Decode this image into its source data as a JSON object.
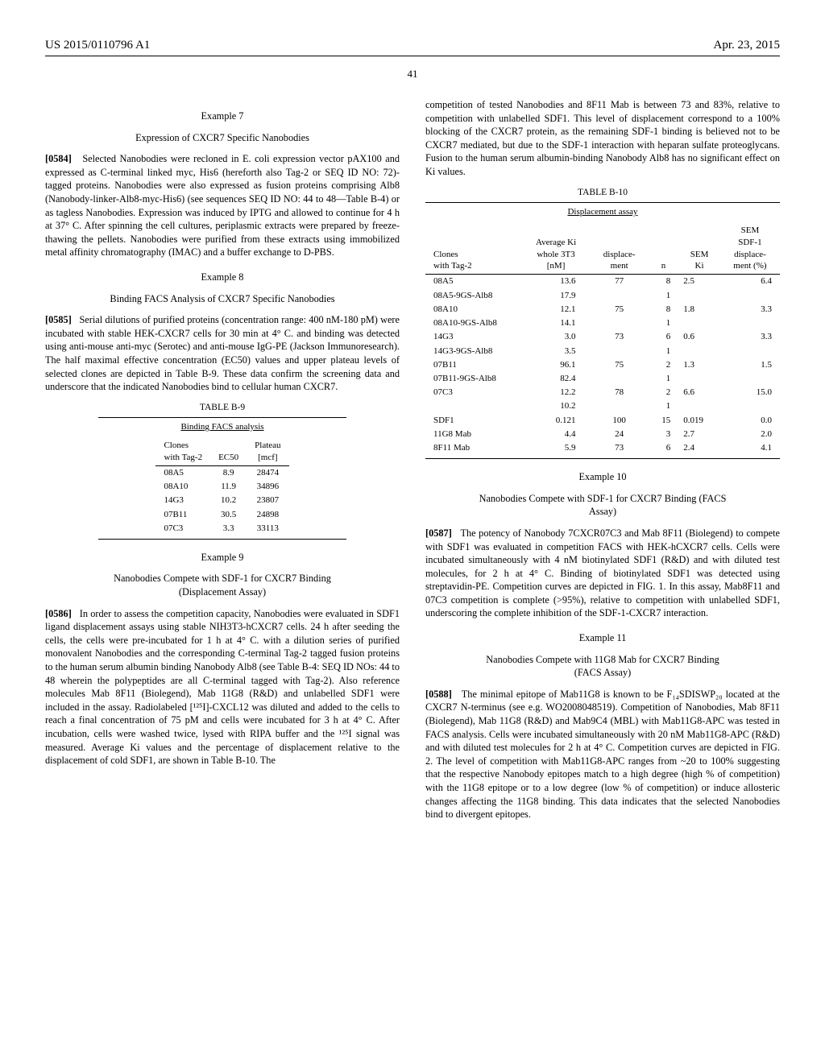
{
  "header": {
    "pub_no": "US 2015/0110796 A1",
    "date": "Apr. 23, 2015",
    "page": "41"
  },
  "left": {
    "ex7": {
      "title": "Example 7",
      "sub": "Expression of CXCR7 Specific Nanobodies",
      "paraNum": "[0584]",
      "paraText": "Selected Nanobodies were recloned in E. coli expression vector pAX100 and expressed as C-terminal linked myc, His6 (hereforth also Tag-2 or SEQ ID NO: 72)-tagged proteins. Nanobodies were also expressed as fusion proteins comprising Alb8 (Nanobody-linker-Alb8-myc-His6) (see sequences SEQ ID NO: 44 to 48—Table B-4) or as tagless Nanobodies. Expression was induced by IPTG and allowed to continue for 4 h at 37° C. After spinning the cell cultures, periplasmic extracts were prepared by freeze-thawing the pellets. Nanobodies were purified from these extracts using immobilized metal affinity chromatography (IMAC) and a buffer exchange to D-PBS."
    },
    "ex8": {
      "title": "Example 8",
      "sub": "Binding FACS Analysis of CXCR7 Specific Nanobodies",
      "paraNum": "[0585]",
      "paraText": "Serial dilutions of purified proteins (concentration range: 400 nM-180 pM) were incubated with stable HEK-CXCR7 cells for 30 min at 4° C. and binding was detected using anti-mouse anti-myc (Serotec) and anti-mouse IgG-PE (Jackson Immunoresearch). The half maximal effective concentration (EC50) values and upper plateau levels of selected clones are depicted in Table B-9. These data confirm the screening data and underscore that the indicated Nanobodies bind to cellular human CXCR7."
    },
    "tableB9": {
      "label": "TABLE B-9",
      "caption": "Binding FACS analysis",
      "headers": {
        "c1a": "Clones",
        "c1b": "with Tag-2",
        "c2": "EC50",
        "c3a": "Plateau",
        "c3b": "[mcf]"
      },
      "rows": [
        {
          "clone": "08A5",
          "ec50": "8.9",
          "plateau": "28474"
        },
        {
          "clone": "08A10",
          "ec50": "11.9",
          "plateau": "34896"
        },
        {
          "clone": "14G3",
          "ec50": "10.2",
          "plateau": "23807"
        },
        {
          "clone": "07B11",
          "ec50": "30.5",
          "plateau": "24898"
        },
        {
          "clone": "07C3",
          "ec50": "3.3",
          "plateau": "33113"
        }
      ]
    },
    "ex9": {
      "title": "Example 9",
      "sub": "Nanobodies Compete with SDF-1 for CXCR7 Binding (Displacement Assay)",
      "paraNum": "[0586]",
      "paraText": "In order to assess the competition capacity, Nanobodies were evaluated in SDF1 ligand displacement assays using stable NIH3T3-hCXCR7 cells. 24 h after seeding the cells, the cells were pre-incubated for 1 h at 4° C. with a dilution series of purified monovalent Nanobodies and the corresponding C-terminal Tag-2 tagged fusion proteins to the human serum albumin binding Nanobody Alb8 (see Table B-4: SEQ ID NOs: 44 to 48 wherein the polypeptides are all C-terminal tagged with Tag-2). Also reference molecules Mab 8F11 (Biolegend), Mab 11G8 (R&D) and unlabelled SDF1 were included in the assay. Radiolabeled [¹²⁵I]-CXCL12 was diluted and added to the cells to reach a final concentration of 75 pM and cells were incubated for 3 h at 4° C. After incubation, cells were washed twice, lysed with RIPA buffer and the ¹²⁵I signal was measured. Average Ki values and the percentage of displacement relative to the displacement of cold SDF1, are shown in Table B-10. The"
    }
  },
  "right": {
    "cont": "competition of tested Nanobodies and 8F11 Mab is between 73 and 83%, relative to competition with unlabelled SDF1. This level of displacement correspond to a 100% blocking of the CXCR7 protein, as the remaining SDF-1 binding is believed not to be CXCR7 mediated, but due to the SDF-1 interaction with heparan sulfate proteoglycans. Fusion to the human serum albumin-binding Nanobody Alb8 has no significant effect on Ki values.",
    "tableB10": {
      "label": "TABLE B-10",
      "caption": "Displacement assay",
      "headers": {
        "c1a": "Clones",
        "c1b": "with Tag-2",
        "c2a": "Average Ki",
        "c2b": "whole 3T3",
        "c2c": "[nM]",
        "c3a": "displace-",
        "c3b": "ment",
        "c4": "n",
        "c5a": "SEM",
        "c5b": "Ki",
        "c6a": "SEM",
        "c6b": "SDF-1",
        "c6c": "displace-",
        "c6d": "ment (%)"
      },
      "rows": [
        {
          "clone": "08A5",
          "ki": "13.6",
          "disp": "77",
          "n": "8",
          "semki": "2.5",
          "semd": "6.4"
        },
        {
          "clone": "08A5-9GS-Alb8",
          "ki": "17.9",
          "disp": "",
          "n": "1",
          "semki": "",
          "semd": ""
        },
        {
          "clone": "08A10",
          "ki": "12.1",
          "disp": "75",
          "n": "8",
          "semki": "1.8",
          "semd": "3.3"
        },
        {
          "clone": "08A10-9GS-Alb8",
          "ki": "14.1",
          "disp": "",
          "n": "1",
          "semki": "",
          "semd": ""
        },
        {
          "clone": "14G3",
          "ki": "3.0",
          "disp": "73",
          "n": "6",
          "semki": "0.6",
          "semd": "3.3"
        },
        {
          "clone": "14G3-9GS-Alb8",
          "ki": "3.5",
          "disp": "",
          "n": "1",
          "semki": "",
          "semd": ""
        },
        {
          "clone": "07B11",
          "ki": "96.1",
          "disp": "75",
          "n": "2",
          "semki": "1.3",
          "semd": "1.5"
        },
        {
          "clone": "07B11-9GS-Alb8",
          "ki": "82.4",
          "disp": "",
          "n": "1",
          "semki": "",
          "semd": ""
        },
        {
          "clone": "07C3",
          "ki": "12.2",
          "disp": "78",
          "n": "2",
          "semki": "6.6",
          "semd": "15.0"
        },
        {
          "clone": "",
          "ki": "10.2",
          "disp": "",
          "n": "1",
          "semki": "",
          "semd": ""
        },
        {
          "clone": "SDF1",
          "ki": "0.121",
          "disp": "100",
          "n": "15",
          "semki": "0.019",
          "semd": "0.0"
        },
        {
          "clone": "11G8 Mab",
          "ki": "4.4",
          "disp": "24",
          "n": "3",
          "semki": "2.7",
          "semd": "2.0"
        },
        {
          "clone": "8F11 Mab",
          "ki": "5.9",
          "disp": "73",
          "n": "6",
          "semki": "2.4",
          "semd": "4.1"
        }
      ]
    },
    "ex10": {
      "title": "Example 10",
      "sub": "Nanobodies Compete with SDF-1 for CXCR7 Binding (FACS Assay)",
      "paraNum": "[0587]",
      "paraText": "The potency of Nanobody 7CXCR07C3 and Mab 8F11 (Biolegend) to compete with SDF1 was evaluated in competition FACS with HEK-hCXCR7 cells. Cells were incubated simultaneously with 4 nM biotinylated SDF1 (R&D) and with diluted test molecules, for 2 h at 4° C. Binding of biotinylated SDF1 was detected using streptavidin-PE. Competition curves are depicted in FIG. 1. In this assay, Mab8F11 and 07C3 competition is complete (>95%), relative to competition with unlabelled SDF1, underscoring the complete inhibition of the SDF-1-CXCR7 interaction."
    },
    "ex11": {
      "title": "Example 11",
      "sub": "Nanobodies Compete with 11G8 Mab for CXCR7 Binding (FACS Assay)",
      "paraNum": "[0588]",
      "paraText": "The minimal epitope of Mab11G8 is known to be F₁₄SDISWP₂₀ located at the CXCR7 N-terminus (see e.g. WO2008048519). Competition of Nanobodies, Mab 8F11 (Biolegend), Mab 11G8 (R&D) and Mab9C4 (MBL) with Mab11G8-APC was tested in FACS analysis. Cells were incubated simultaneously with 20 nM Mab11G8-APC (R&D) and with diluted test molecules for 2 h at 4° C. Competition curves are depicted in FIG. 2. The level of competition with Mab11G8-APC ranges from ~20 to 100% suggesting that the respective Nanobody epitopes match to a high degree (high % of competition) with the 11G8 epitope or to a low degree (low % of competition) or induce allosteric changes affecting the 11G8 binding. This data indicates that the selected Nanobodies bind to divergent epitopes."
    }
  }
}
